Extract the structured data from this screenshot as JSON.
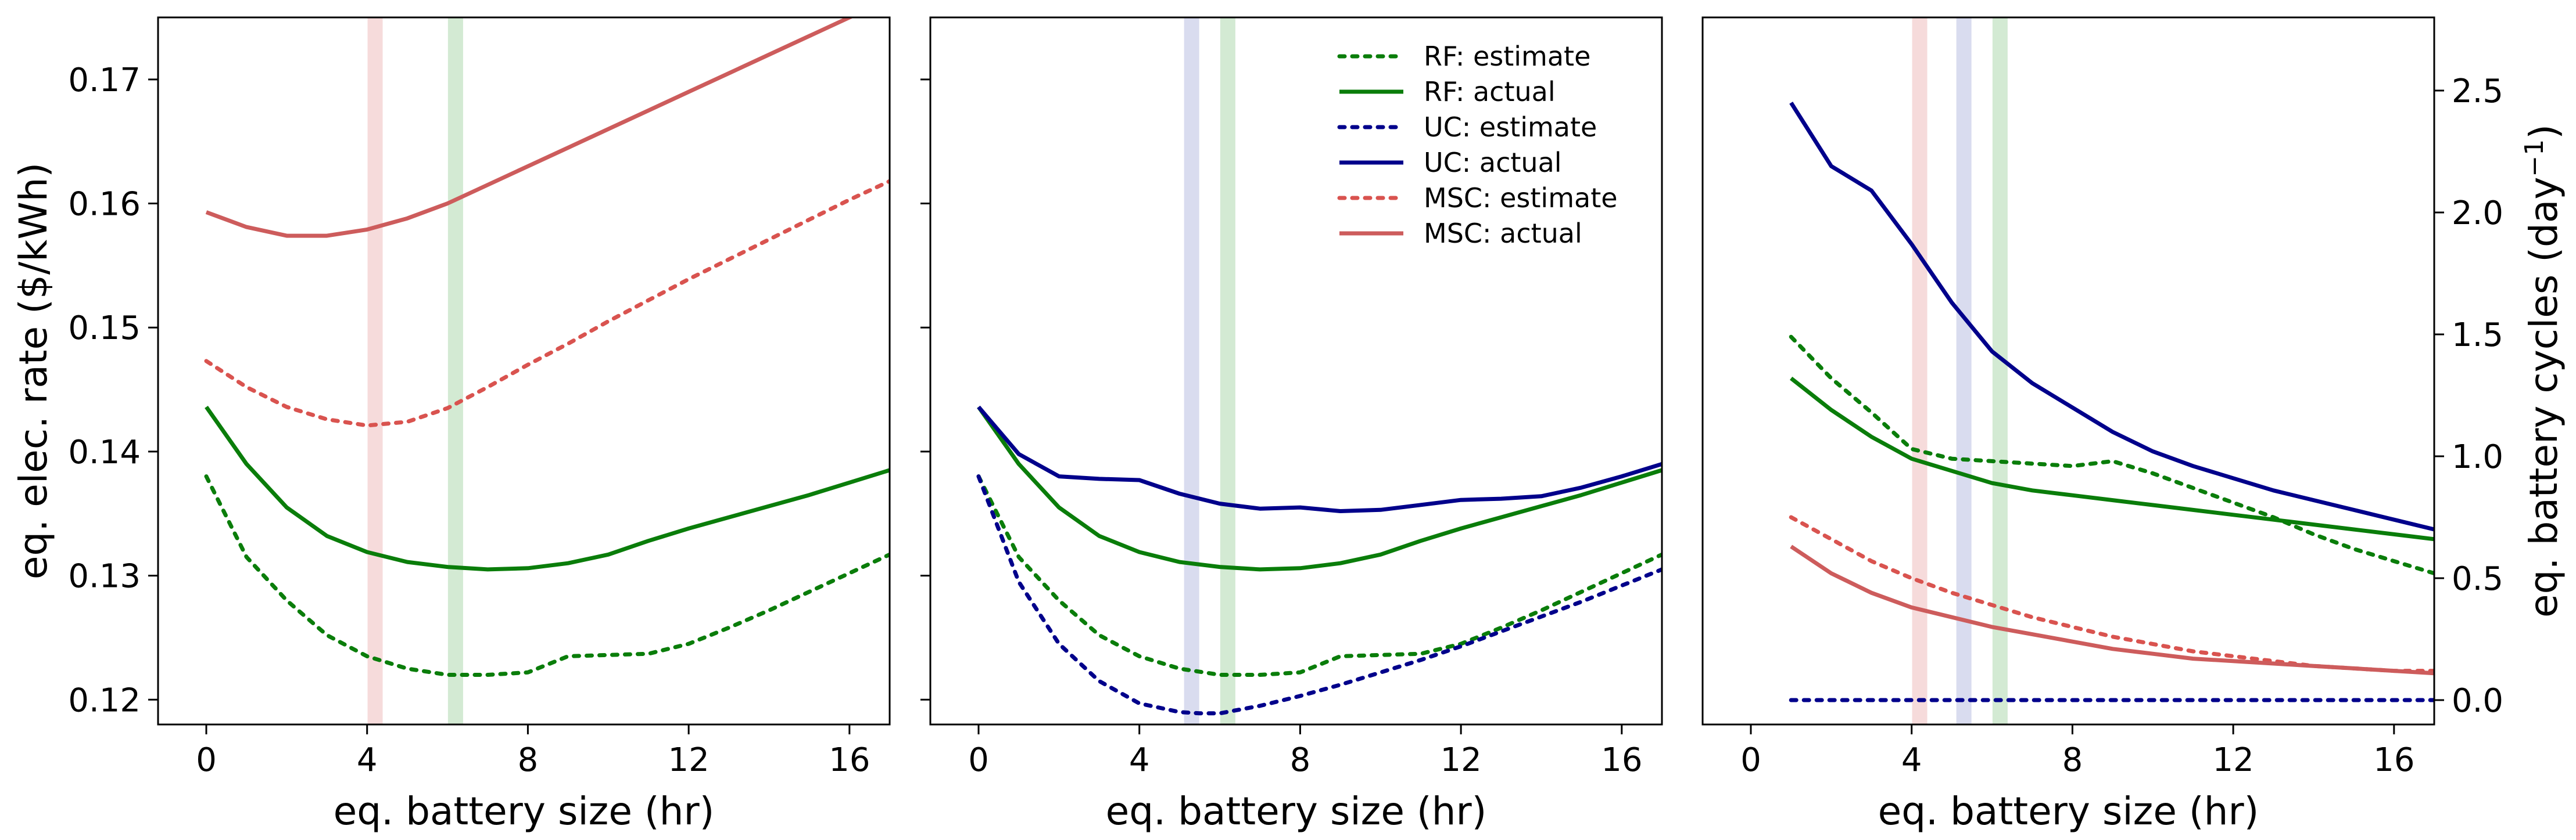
{
  "chart_data": [
    {
      "type": "line",
      "panel": "left",
      "xlabel": "eq. battery size (hr)",
      "ylabel": "eq. elec. rate ($/kWh)",
      "xlim": [
        -1.2,
        17
      ],
      "ylim": [
        0.118,
        0.175
      ],
      "xticks": [
        0,
        4,
        8,
        12,
        16
      ],
      "xtick_labels": [
        "0",
        "4",
        "8",
        "12",
        "16"
      ],
      "yticks": [
        0.12,
        0.13,
        0.14,
        0.15,
        0.16,
        0.17
      ],
      "ytick_labels": [
        "0.12",
        "0.13",
        "0.14",
        "0.15",
        "0.16",
        "0.17"
      ],
      "grid": false,
      "bands": [
        {
          "x": 4.2,
          "color": "#e8a0a0"
        },
        {
          "x": 6.2,
          "color": "#8cc88c"
        }
      ],
      "series": [
        {
          "name": "RF: estimate",
          "color": "#0a7d0a",
          "style": "dotted",
          "x": [
            0,
            1,
            2,
            3,
            4,
            5,
            6,
            7,
            8,
            9,
            10,
            11,
            12,
            13,
            14,
            15,
            16,
            17
          ],
          "y": [
            0.138,
            0.1315,
            0.128,
            0.1252,
            0.1235,
            0.1225,
            0.122,
            0.122,
            0.1222,
            0.1235,
            0.1236,
            0.1237,
            0.1245,
            0.1258,
            0.1272,
            0.1287,
            0.1302,
            0.1317
          ]
        },
        {
          "name": "RF: actual",
          "color": "#0a7d0a",
          "style": "solid",
          "x": [
            0,
            1,
            2,
            3,
            4,
            5,
            6,
            7,
            8,
            9,
            10,
            11,
            12,
            13,
            14,
            15,
            16,
            17
          ],
          "y": [
            0.1436,
            0.139,
            0.1355,
            0.1332,
            0.1319,
            0.1311,
            0.1307,
            0.1305,
            0.1306,
            0.131,
            0.1317,
            0.1328,
            0.1338,
            0.1347,
            0.1356,
            0.1365,
            0.1375,
            0.1385
          ]
        },
        {
          "name": "MSC: estimate",
          "color": "#d9534f",
          "style": "dotted",
          "x": [
            0,
            1,
            2,
            3,
            4,
            5,
            6,
            7,
            8,
            9,
            10,
            11,
            12,
            13,
            14,
            15,
            16,
            17
          ],
          "y": [
            0.1473,
            0.1452,
            0.1436,
            0.1426,
            0.1421,
            0.1424,
            0.1435,
            0.1452,
            0.147,
            0.1487,
            0.1505,
            0.1522,
            0.1539,
            0.1555,
            0.1571,
            0.1587,
            0.1603,
            0.1618
          ]
        },
        {
          "name": "MSC: actual",
          "color": "#cd5c5c",
          "style": "solid",
          "x": [
            0,
            1,
            2,
            3,
            4,
            5,
            6,
            7,
            8,
            9,
            10,
            11,
            12,
            13,
            14,
            15,
            16,
            17
          ],
          "y": [
            0.1593,
            0.1581,
            0.1574,
            0.1574,
            0.1579,
            0.1588,
            0.16,
            0.1615,
            0.163,
            0.1645,
            0.166,
            0.1675,
            0.169,
            0.1705,
            0.172,
            0.1735,
            0.175,
            0.1765
          ]
        }
      ]
    },
    {
      "type": "line",
      "panel": "middle",
      "xlabel": "eq. battery size (hr)",
      "ylabel": "",
      "xlim": [
        -1.2,
        17
      ],
      "ylim": [
        0.118,
        0.175
      ],
      "xticks": [
        0,
        4,
        8,
        12,
        16
      ],
      "xtick_labels": [
        "0",
        "4",
        "8",
        "12",
        "16"
      ],
      "grid": false,
      "legend": "top-right",
      "bands": [
        {
          "x": 5.3,
          "color": "#9aa3d6"
        },
        {
          "x": 6.2,
          "color": "#8cc88c"
        }
      ],
      "series": [
        {
          "name": "RF: estimate",
          "color": "#0a7d0a",
          "style": "dotted",
          "x": [
            0,
            1,
            2,
            3,
            4,
            5,
            6,
            7,
            8,
            9,
            10,
            11,
            12,
            13,
            14,
            15,
            16,
            17
          ],
          "y": [
            0.138,
            0.1315,
            0.128,
            0.1252,
            0.1235,
            0.1225,
            0.122,
            0.122,
            0.1222,
            0.1235,
            0.1236,
            0.1237,
            0.1245,
            0.1258,
            0.1272,
            0.1287,
            0.1302,
            0.1317
          ]
        },
        {
          "name": "RF: actual",
          "color": "#0a7d0a",
          "style": "solid",
          "x": [
            0,
            1,
            2,
            3,
            4,
            5,
            6,
            7,
            8,
            9,
            10,
            11,
            12,
            13,
            14,
            15,
            16,
            17
          ],
          "y": [
            0.1436,
            0.139,
            0.1355,
            0.1332,
            0.1319,
            0.1311,
            0.1307,
            0.1305,
            0.1306,
            0.131,
            0.1317,
            0.1328,
            0.1338,
            0.1347,
            0.1356,
            0.1365,
            0.1375,
            0.1385
          ]
        },
        {
          "name": "UC: estimate",
          "color": "#00008b",
          "style": "dotted",
          "x": [
            0,
            1,
            2,
            3,
            4,
            5,
            5.5,
            6,
            7,
            8,
            9,
            10,
            11,
            12,
            13,
            14,
            15,
            16,
            17
          ],
          "y": [
            0.138,
            0.1295,
            0.1245,
            0.1215,
            0.1197,
            0.119,
            0.1189,
            0.1189,
            0.1195,
            0.1203,
            0.1212,
            0.1222,
            0.1232,
            0.1243,
            0.1255,
            0.1267,
            0.1279,
            0.1292,
            0.1305
          ]
        },
        {
          "name": "UC: actual",
          "color": "#00008b",
          "style": "solid",
          "x": [
            0,
            1,
            2,
            3,
            4,
            5,
            6,
            7,
            8,
            9,
            10,
            11,
            12,
            13,
            14,
            15,
            16,
            17
          ],
          "y": [
            0.1436,
            0.1398,
            0.138,
            0.1378,
            0.1377,
            0.1366,
            0.1358,
            0.1354,
            0.1355,
            0.1352,
            0.1353,
            0.1357,
            0.1361,
            0.1362,
            0.1364,
            0.1371,
            0.138,
            0.139
          ]
        }
      ]
    },
    {
      "type": "line",
      "panel": "right",
      "xlabel": "eq. battery size (hr)",
      "ylabel": "eq. battery cycles (day",
      "ylabel_sup": "−1",
      "ylabel_tail": ")",
      "xlim": [
        -1.2,
        17
      ],
      "ylim": [
        -0.1,
        2.8
      ],
      "xticks": [
        0,
        4,
        8,
        12,
        16
      ],
      "xtick_labels": [
        "0",
        "4",
        "8",
        "12",
        "16"
      ],
      "yticks": [
        0.0,
        0.5,
        1.0,
        1.5,
        2.0,
        2.5
      ],
      "ytick_labels": [
        "0.0",
        "0.5",
        "1.0",
        "1.5",
        "2.0",
        "2.5"
      ],
      "grid": false,
      "bands": [
        {
          "x": 4.2,
          "color": "#e8a0a0"
        },
        {
          "x": 5.3,
          "color": "#9aa3d6"
        },
        {
          "x": 6.2,
          "color": "#8cc88c"
        }
      ],
      "series": [
        {
          "name": "RF: estimate",
          "color": "#0a7d0a",
          "style": "dotted",
          "x": [
            1,
            2,
            3,
            4,
            5,
            6,
            7,
            8,
            9,
            10,
            11,
            12,
            13,
            14,
            15,
            16,
            17
          ],
          "y": [
            1.49,
            1.32,
            1.18,
            1.03,
            0.99,
            0.98,
            0.97,
            0.96,
            0.98,
            0.93,
            0.87,
            0.81,
            0.75,
            0.68,
            0.62,
            0.57,
            0.52
          ]
        },
        {
          "name": "RF: actual",
          "color": "#0a7d0a",
          "style": "solid",
          "x": [
            1,
            2,
            3,
            4,
            5,
            6,
            7,
            8,
            9,
            10,
            11,
            12,
            13,
            14,
            15,
            16,
            17
          ],
          "y": [
            1.32,
            1.19,
            1.08,
            0.99,
            0.94,
            0.89,
            0.86,
            0.84,
            0.82,
            0.8,
            0.78,
            0.76,
            0.74,
            0.72,
            0.7,
            0.68,
            0.66
          ]
        },
        {
          "name": "UC: estimate",
          "color": "#00008b",
          "style": "dotted",
          "x": [
            1,
            2,
            3,
            4,
            5,
            6,
            7,
            8,
            9,
            10,
            11,
            12,
            13,
            14,
            15,
            16,
            17
          ],
          "y": [
            0.0,
            0.0,
            0.0,
            0.0,
            0.0,
            0.0,
            0.0,
            0.0,
            0.0,
            0.0,
            0.0,
            0.0,
            0.0,
            0.0,
            0.0,
            0.0,
            0.0
          ]
        },
        {
          "name": "UC: actual",
          "color": "#00008b",
          "style": "solid",
          "x": [
            1,
            2,
            3,
            4,
            5,
            6,
            7,
            8,
            9,
            10,
            11,
            12,
            13,
            14,
            15,
            16,
            17
          ],
          "y": [
            2.45,
            2.19,
            2.09,
            1.87,
            1.63,
            1.43,
            1.3,
            1.2,
            1.1,
            1.02,
            0.96,
            0.91,
            0.86,
            0.82,
            0.78,
            0.74,
            0.7
          ]
        },
        {
          "name": "MSC: estimate",
          "color": "#d9534f",
          "style": "dotted",
          "x": [
            1,
            2,
            3,
            4,
            5,
            6,
            7,
            8,
            9,
            10,
            11,
            12,
            13,
            14,
            15,
            16,
            17
          ],
          "y": [
            0.75,
            0.66,
            0.57,
            0.5,
            0.44,
            0.39,
            0.34,
            0.3,
            0.26,
            0.23,
            0.2,
            0.18,
            0.16,
            0.14,
            0.13,
            0.12,
            0.12
          ]
        },
        {
          "name": "MSC: actual",
          "color": "#cd5c5c",
          "style": "solid",
          "x": [
            1,
            2,
            3,
            4,
            5,
            6,
            7,
            8,
            9,
            10,
            11,
            12,
            13,
            14,
            15,
            16,
            17
          ],
          "y": [
            0.63,
            0.52,
            0.44,
            0.38,
            0.34,
            0.3,
            0.27,
            0.24,
            0.21,
            0.19,
            0.17,
            0.16,
            0.15,
            0.14,
            0.13,
            0.12,
            0.11
          ]
        }
      ]
    }
  ],
  "legend": [
    {
      "label": "RF: estimate",
      "color": "#0a7d0a",
      "style": "dotted"
    },
    {
      "label": "RF: actual",
      "color": "#0a7d0a",
      "style": "solid"
    },
    {
      "label": "UC: estimate",
      "color": "#00008b",
      "style": "dotted"
    },
    {
      "label": "UC: actual",
      "color": "#00008b",
      "style": "solid"
    },
    {
      "label": "MSC: estimate",
      "color": "#d9534f",
      "style": "dotted"
    },
    {
      "label": "MSC: actual",
      "color": "#cd5c5c",
      "style": "solid"
    }
  ]
}
